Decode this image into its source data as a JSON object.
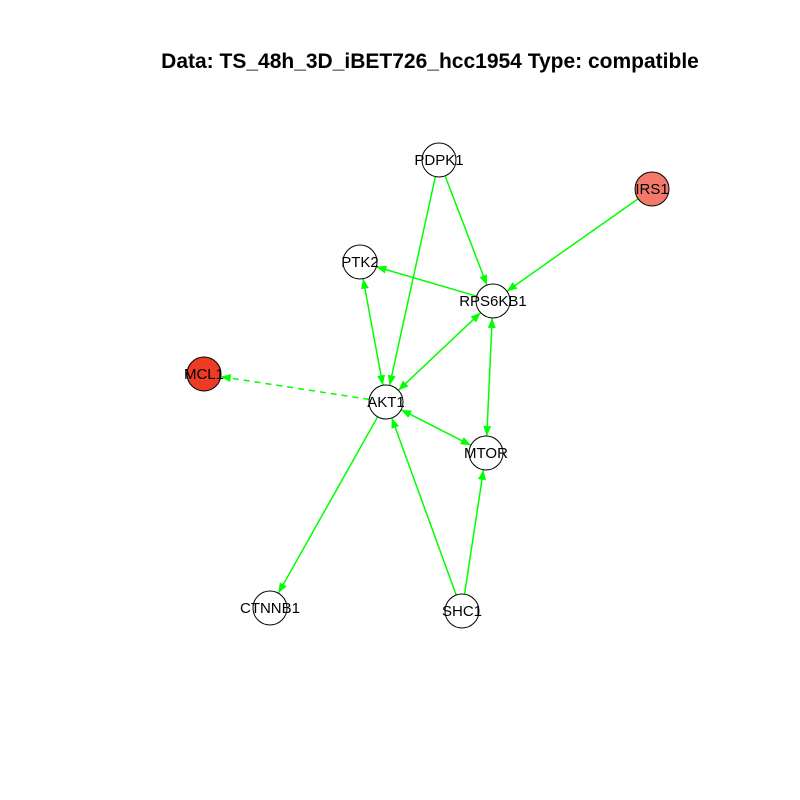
{
  "title": "Data: TS_48h_3D_iBET726_hcc1954 Type: compatible",
  "colors": {
    "edge": "#00ff00",
    "node_default": "#ffffff",
    "node_stroke": "#000000",
    "node_irs1": "#f4796a",
    "node_mcl1": "#ee3b25"
  },
  "nodes": [
    {
      "id": "PDPK1",
      "label": "PDPK1",
      "fill": "#ffffff"
    },
    {
      "id": "IRS1",
      "label": "IRS1",
      "fill": "#f4796a"
    },
    {
      "id": "PTK2",
      "label": "PTK2",
      "fill": "#ffffff"
    },
    {
      "id": "RPS6KB1",
      "label": "RPS6KB1",
      "fill": "#ffffff"
    },
    {
      "id": "MCL1",
      "label": "MCL1",
      "fill": "#ee3b25"
    },
    {
      "id": "AKT1",
      "label": "AKT1",
      "fill": "#ffffff"
    },
    {
      "id": "MTOR",
      "label": "MTOR",
      "fill": "#ffffff"
    },
    {
      "id": "CTNNB1",
      "label": "CTNNB1",
      "fill": "#ffffff"
    },
    {
      "id": "SHC1",
      "label": "SHC1",
      "fill": "#ffffff"
    }
  ],
  "edges": [
    {
      "from": "PDPK1",
      "to": "AKT1",
      "style": "solid",
      "arrow": "to"
    },
    {
      "from": "PDPK1",
      "to": "RPS6KB1",
      "style": "solid",
      "arrow": "to"
    },
    {
      "from": "IRS1",
      "to": "RPS6KB1",
      "style": "solid",
      "arrow": "to"
    },
    {
      "from": "RPS6KB1",
      "to": "PTK2",
      "style": "solid",
      "arrow": "to"
    },
    {
      "from": "PTK2",
      "to": "AKT1",
      "style": "solid",
      "arrow": "both"
    },
    {
      "from": "AKT1",
      "to": "RPS6KB1",
      "style": "solid",
      "arrow": "both"
    },
    {
      "from": "RPS6KB1",
      "to": "MTOR",
      "style": "solid",
      "arrow": "both"
    },
    {
      "from": "AKT1",
      "to": "MTOR",
      "style": "solid",
      "arrow": "both"
    },
    {
      "from": "AKT1",
      "to": "MCL1",
      "style": "dashed",
      "arrow": "to"
    },
    {
      "from": "AKT1",
      "to": "CTNNB1",
      "style": "solid",
      "arrow": "to"
    },
    {
      "from": "SHC1",
      "to": "AKT1",
      "style": "solid",
      "arrow": "to"
    },
    {
      "from": "SHC1",
      "to": "MTOR",
      "style": "solid",
      "arrow": "to"
    }
  ]
}
